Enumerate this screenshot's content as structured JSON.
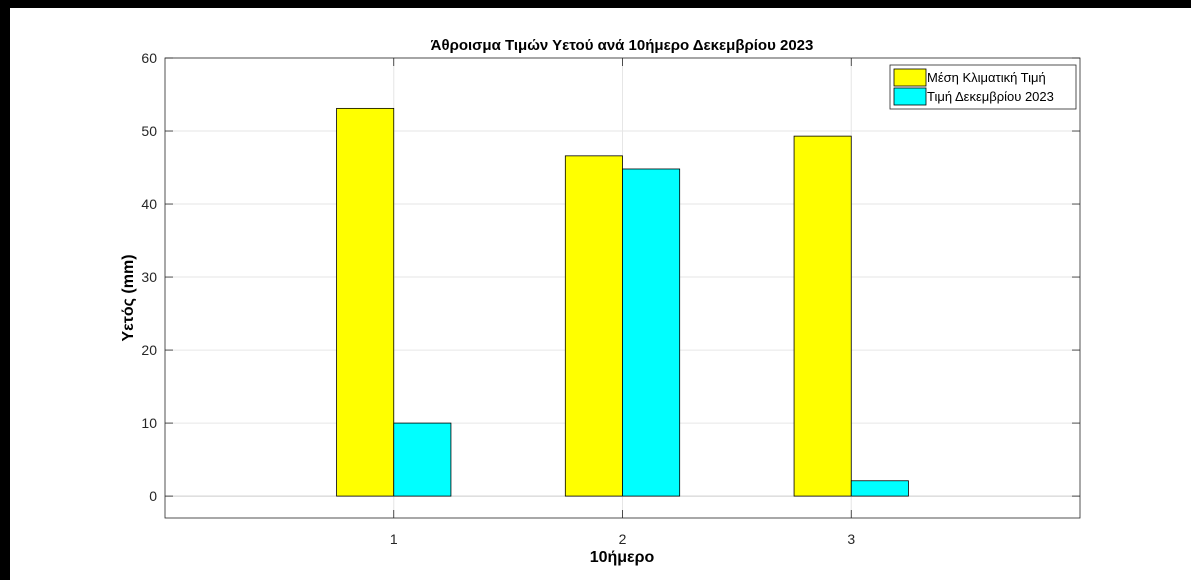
{
  "chart_data": {
    "type": "bar",
    "title": "Άθροισμα Τιμών Υετού ανά 10ήμερο Δεκεμβρίου 2023",
    "xlabel": "10ήμερο",
    "ylabel": "Υετός (mm)",
    "categories": [
      "1",
      "2",
      "3"
    ],
    "x_range": [
      0,
      4
    ],
    "ylim": [
      -3,
      60
    ],
    "yticks": [
      0,
      10,
      20,
      30,
      40,
      50,
      60
    ],
    "grid": true,
    "legend_position": "top-right",
    "series": [
      {
        "name": "Μέση Κλιματική Τιμή",
        "color": "#ffff00",
        "values": [
          53.1,
          46.6,
          49.3
        ]
      },
      {
        "name": "Τιμή Δεκεμβρίου 2023",
        "color": "#00ffff",
        "values": [
          10.0,
          44.8,
          2.1
        ]
      }
    ]
  }
}
